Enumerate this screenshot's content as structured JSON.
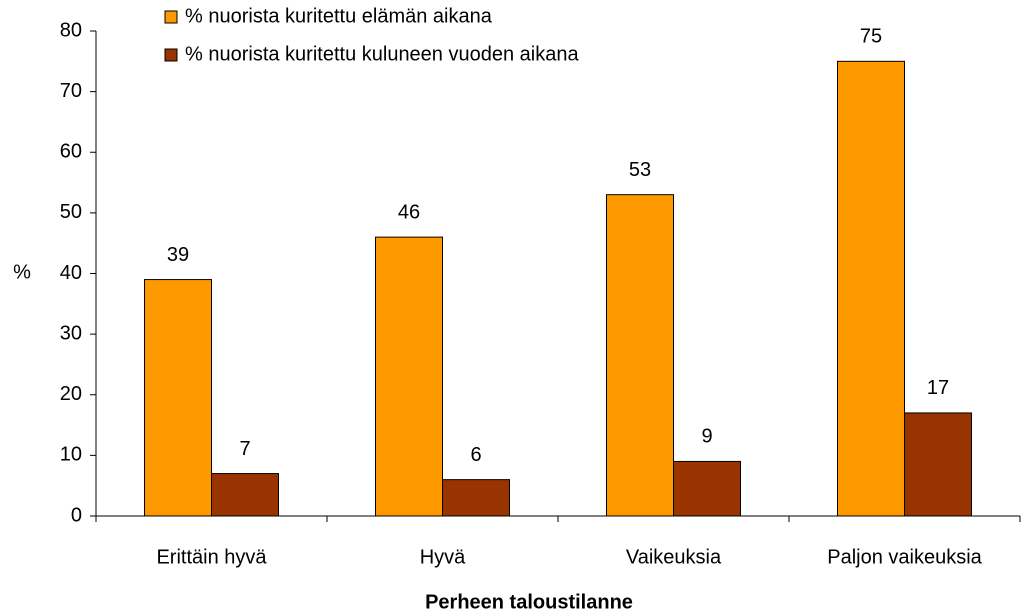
{
  "chart_data": {
    "type": "bar",
    "x_label": "Perheen taloustilanne",
    "y_label": "%",
    "categories": [
      "Erittäin hyvä",
      "Hyvä",
      "Vaikeuksia",
      "Paljon vaikeuksia"
    ],
    "series": [
      {
        "name": "% nuorista kuritettu elämän aikana",
        "color": "#ff9900",
        "values": [
          39,
          46,
          53,
          75
        ]
      },
      {
        "name": "% nuorista kuritettu kuluneen vuoden aikana",
        "color": "#993300",
        "values": [
          7,
          6,
          9,
          17
        ]
      }
    ],
    "ylim": [
      0,
      80
    ],
    "yticks": [
      0,
      10,
      20,
      30,
      40,
      50,
      60,
      70,
      80
    ],
    "legend": "top"
  }
}
